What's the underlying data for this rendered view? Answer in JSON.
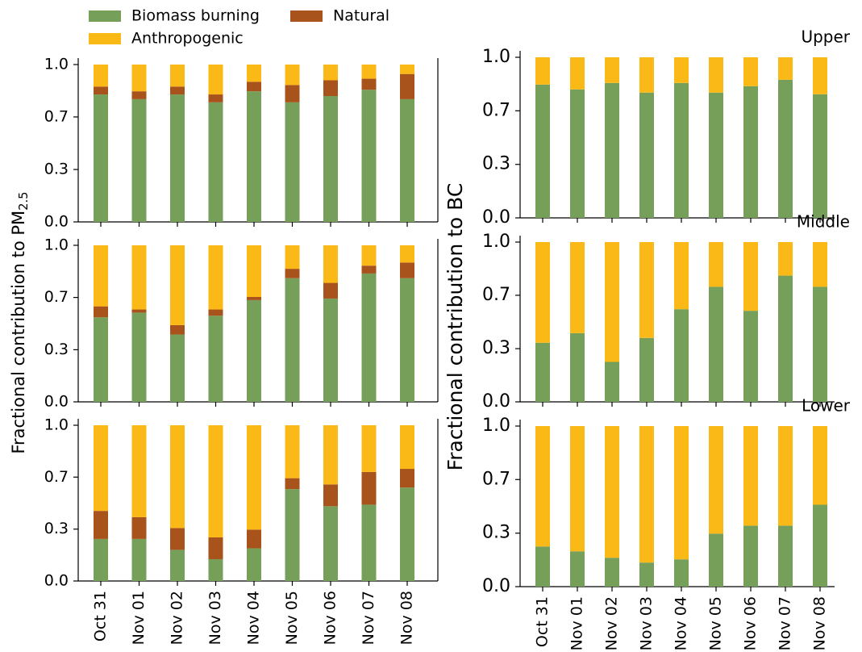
{
  "chart_data": [
    {
      "type": "bar",
      "stacked": true,
      "series": [
        {
          "name": "Biomass burning",
          "color": "#76a05a",
          "values": [
            0.81,
            0.78,
            0.81,
            0.76,
            0.83,
            0.76,
            0.8,
            0.84,
            0.78
          ]
        },
        {
          "name": "Anthropogenic",
          "color": "#fbb917",
          "values": [
            0.14,
            0.17,
            0.14,
            0.19,
            0.11,
            0.13,
            0.1,
            0.09,
            0.06
          ]
        },
        {
          "name": "Natural",
          "color": "#a8521c",
          "values": [
            0.05,
            0.05,
            0.05,
            0.05,
            0.06,
            0.11,
            0.1,
            0.07,
            0.16
          ]
        }
      ],
      "ylim": [
        0,
        1
      ],
      "yticks": [
        {
          "value": 0,
          "label": "0.0"
        },
        {
          "value": 0.333,
          "label": "0.3"
        },
        {
          "value": 0.667,
          "label": "0.7"
        },
        {
          "value": 1,
          "label": "1.0"
        }
      ]
    },
    {
      "type": "bar",
      "stacked": true,
      "ylabel": {
        "text": "Fractional contribution to PM",
        "sub": "2.5"
      },
      "series": [
        {
          "name": "Biomass burning",
          "color": "#76a05a",
          "values": [
            0.54,
            0.57,
            0.43,
            0.55,
            0.65,
            0.79,
            0.66,
            0.82,
            0.79
          ]
        },
        {
          "name": "Anthropogenic",
          "color": "#fbb917",
          "values": [
            0.39,
            0.41,
            0.51,
            0.41,
            0.33,
            0.15,
            0.24,
            0.13,
            0.11
          ]
        },
        {
          "name": "Natural",
          "color": "#a8521c",
          "values": [
            0.07,
            0.02,
            0.06,
            0.04,
            0.02,
            0.06,
            0.1,
            0.05,
            0.1
          ]
        }
      ],
      "ylim": [
        0,
        1
      ],
      "yticks": [
        {
          "value": 0,
          "label": "0.0"
        },
        {
          "value": 0.333,
          "label": "0.3"
        },
        {
          "value": 0.667,
          "label": "0.7"
        },
        {
          "value": 1,
          "label": "1.0"
        }
      ]
    },
    {
      "type": "bar",
      "stacked": true,
      "categories": [
        "Oct 31",
        "Nov 01",
        "Nov 02",
        "Nov 03",
        "Nov 04",
        "Nov 05",
        "Nov 06",
        "Nov 07",
        "Nov 08"
      ],
      "series": [
        {
          "name": "Biomass burning",
          "color": "#76a05a",
          "values": [
            0.27,
            0.27,
            0.2,
            0.14,
            0.21,
            0.59,
            0.48,
            0.49,
            0.6
          ]
        },
        {
          "name": "Anthropogenic",
          "color": "#fbb917",
          "values": [
            0.55,
            0.59,
            0.66,
            0.72,
            0.67,
            0.34,
            0.38,
            0.3,
            0.28
          ]
        },
        {
          "name": "Natural",
          "color": "#a8521c",
          "values": [
            0.18,
            0.14,
            0.14,
            0.14,
            0.12,
            0.07,
            0.14,
            0.21,
            0.12
          ]
        }
      ],
      "ylim": [
        0,
        1
      ],
      "yticks": [
        {
          "value": 0,
          "label": "0.0"
        },
        {
          "value": 0.333,
          "label": "0.3"
        },
        {
          "value": 0.667,
          "label": "0.7"
        },
        {
          "value": 1,
          "label": "1.0"
        }
      ]
    },
    {
      "type": "bar",
      "stacked": true,
      "title": "Upper",
      "series": [
        {
          "name": "Biomass burning",
          "color": "#76a05a",
          "values": [
            0.83,
            0.8,
            0.84,
            0.78,
            0.84,
            0.78,
            0.82,
            0.86,
            0.77
          ]
        },
        {
          "name": "Anthropogenic",
          "color": "#fbb917",
          "values": [
            0.17,
            0.2,
            0.16,
            0.22,
            0.16,
            0.22,
            0.18,
            0.14,
            0.23
          ]
        }
      ],
      "ylim": [
        0,
        1
      ],
      "yticks": [
        {
          "value": 0,
          "label": "0.0"
        },
        {
          "value": 0.333,
          "label": "0.3"
        },
        {
          "value": 0.667,
          "label": "0.7"
        },
        {
          "value": 1,
          "label": "1.0"
        }
      ]
    },
    {
      "type": "bar",
      "stacked": true,
      "title": "Middle",
      "ylabel": {
        "text": "Fractional contribution to BC"
      },
      "series": [
        {
          "name": "Biomass burning",
          "color": "#76a05a",
          "values": [
            0.37,
            0.43,
            0.25,
            0.4,
            0.58,
            0.72,
            0.57,
            0.79,
            0.72
          ]
        },
        {
          "name": "Anthropogenic",
          "color": "#fbb917",
          "values": [
            0.63,
            0.57,
            0.75,
            0.6,
            0.42,
            0.28,
            0.43,
            0.21,
            0.28
          ]
        }
      ],
      "ylim": [
        0,
        1
      ],
      "yticks": [
        {
          "value": 0,
          "label": "0.0"
        },
        {
          "value": 0.333,
          "label": "0.3"
        },
        {
          "value": 0.667,
          "label": "0.7"
        },
        {
          "value": 1,
          "label": "1.0"
        }
      ]
    },
    {
      "type": "bar",
      "stacked": true,
      "title": "Lower",
      "categories": [
        "Oct 31",
        "Nov 01",
        "Nov 02",
        "Nov 03",
        "Nov 04",
        "Nov 05",
        "Nov 06",
        "Nov 07",
        "Nov 08"
      ],
      "series": [
        {
          "name": "Biomass burning",
          "color": "#76a05a",
          "values": [
            0.25,
            0.22,
            0.18,
            0.15,
            0.17,
            0.33,
            0.38,
            0.38,
            0.51
          ]
        },
        {
          "name": "Anthropogenic",
          "color": "#fbb917",
          "values": [
            0.75,
            0.78,
            0.82,
            0.85,
            0.83,
            0.67,
            0.62,
            0.62,
            0.49
          ]
        }
      ],
      "ylim": [
        0,
        1
      ],
      "yticks": [
        {
          "value": 0,
          "label": "0.0"
        },
        {
          "value": 0.333,
          "label": "0.3"
        },
        {
          "value": 0.667,
          "label": "0.7"
        },
        {
          "value": 1,
          "label": "1.0"
        }
      ]
    }
  ]
}
